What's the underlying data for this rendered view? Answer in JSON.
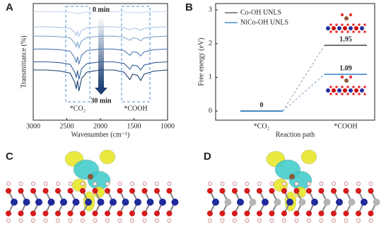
{
  "panel_labels": [
    "A",
    "B",
    "C",
    "D"
  ],
  "chart_data": [
    {
      "type": "spectra",
      "xlabel": "Wavenumber (cm⁻¹)",
      "ylabel": "Transmittance (%)",
      "annotations": [
        "0 min",
        "30 min",
        "*CO₂",
        "*COOH"
      ],
      "xlim": [
        3000,
        1000
      ],
      "xticks": [
        3000,
        2500,
        2000,
        1500,
        1000
      ],
      "ylim": [
        0,
        10
      ],
      "x": [
        3000,
        2800,
        2600,
        2450,
        2380,
        2360,
        2340,
        2320,
        2280,
        2200,
        2000,
        1800,
        1650,
        1600,
        1560,
        1520,
        1450,
        1400,
        1350,
        1200,
        1000
      ],
      "series": [
        {
          "color": "#c9dcef",
          "values": [
            9.3,
            9.3,
            9.29,
            9.27,
            9.18,
            9.12,
            9.2,
            9.1,
            9.22,
            9.28,
            9.3,
            9.3,
            9.28,
            9.24,
            9.21,
            9.26,
            9.25,
            9.2,
            9.26,
            9.29,
            9.3
          ]
        },
        {
          "color": "#a8c4e4",
          "values": [
            8.0,
            8.0,
            7.96,
            7.88,
            7.52,
            7.28,
            7.6,
            7.2,
            7.68,
            7.92,
            8.0,
            8.0,
            7.94,
            7.82,
            7.73,
            7.88,
            7.85,
            7.7,
            7.88,
            7.97,
            8.0
          ]
        },
        {
          "color": "#7ea3cf",
          "values": [
            7.2,
            7.2,
            7.15,
            7.05,
            6.6,
            6.3,
            6.7,
            6.2,
            6.8,
            7.1,
            7.2,
            7.2,
            7.12,
            6.96,
            6.84,
            7.04,
            7.0,
            6.8,
            7.04,
            7.16,
            7.2
          ]
        },
        {
          "color": "#4f7bb3",
          "values": [
            6.1,
            6.1,
            6.04,
            5.91,
            5.32,
            4.93,
            5.45,
            4.8,
            5.58,
            5.97,
            6.1,
            6.1,
            5.98,
            5.74,
            5.56,
            5.86,
            5.8,
            5.5,
            5.86,
            6.04,
            6.1
          ]
        },
        {
          "color": "#2f5b94",
          "values": [
            5.0,
            5.0,
            4.93,
            4.78,
            4.1,
            3.65,
            4.25,
            3.5,
            4.4,
            4.85,
            5.0,
            5.0,
            4.86,
            4.58,
            4.37,
            4.72,
            4.65,
            4.3,
            4.72,
            4.93,
            5.0
          ]
        },
        {
          "color": "#1c3f73",
          "values": [
            4.3,
            4.3,
            4.21,
            4.03,
            3.22,
            2.68,
            3.4,
            2.5,
            3.58,
            4.12,
            4.3,
            4.3,
            4.12,
            3.76,
            3.49,
            3.94,
            3.85,
            3.4,
            3.94,
            4.21,
            4.3
          ]
        }
      ]
    },
    {
      "type": "energy_diagram",
      "xlabel": "Reaction path",
      "ylabel": "Free energy (eV)",
      "categories": [
        "*CO₂",
        "*COOH"
      ],
      "ylim": [
        -0.27,
        3.19
      ],
      "yticks": [
        0,
        1,
        2,
        3
      ],
      "series": [
        {
          "name": "Co-OH UNLS",
          "color": "#444444",
          "values": [
            0,
            1.95
          ]
        },
        {
          "name": "NiCo-OH UNLS",
          "color": "#1f77c4",
          "values": [
            0,
            1.09
          ]
        }
      ]
    }
  ]
}
